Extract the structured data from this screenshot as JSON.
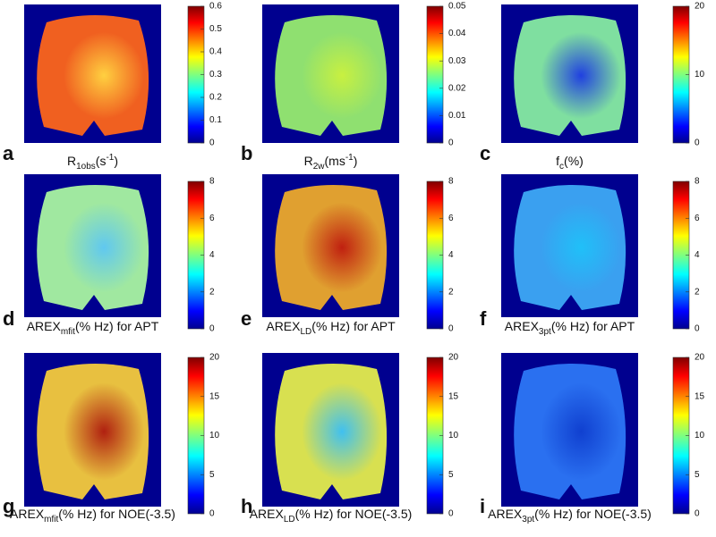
{
  "panels": [
    {
      "letter": "a",
      "label": [
        {
          "text": "R"
        },
        {
          "text": "1obs",
          "sub": true
        },
        {
          "text": "(s"
        },
        {
          "text": "-1",
          "sup": true
        },
        {
          "text": ")"
        }
      ],
      "clim": [
        0,
        0.6
      ],
      "ticks": [
        0,
        0.1,
        0.2,
        0.3,
        0.4,
        0.5,
        0.6
      ]
    },
    {
      "letter": "b",
      "label": [
        {
          "text": "R"
        },
        {
          "text": "2w",
          "sub": true
        },
        {
          "text": "(ms"
        },
        {
          "text": "-1",
          "sup": true
        },
        {
          "text": ")"
        }
      ],
      "clim": [
        0,
        0.05
      ],
      "ticks": [
        0,
        0.01,
        0.02,
        0.03,
        0.04,
        0.05
      ]
    },
    {
      "letter": "c",
      "label": [
        {
          "text": "f"
        },
        {
          "text": "c",
          "sub": true
        },
        {
          "text": "(%)"
        }
      ],
      "clim": [
        0,
        20
      ],
      "ticks": [
        0,
        10,
        20
      ]
    },
    {
      "letter": "d",
      "label": [
        {
          "text": "AREX"
        },
        {
          "text": "mfit",
          "sub": true
        },
        {
          "text": "(% Hz) for APT"
        }
      ],
      "clim": [
        0,
        8
      ],
      "ticks": [
        0,
        2,
        4,
        6,
        8
      ]
    },
    {
      "letter": "e",
      "label": [
        {
          "text": "AREX"
        },
        {
          "text": "LD",
          "sub": true
        },
        {
          "text": "(% Hz) for APT"
        }
      ],
      "clim": [
        0,
        8
      ],
      "ticks": [
        0,
        2,
        4,
        6,
        8
      ]
    },
    {
      "letter": "f",
      "label": [
        {
          "text": "AREX"
        },
        {
          "text": "3pt",
          "sub": true
        },
        {
          "text": "(% Hz) for APT"
        }
      ],
      "clim": [
        0,
        8
      ],
      "ticks": [
        0,
        2,
        4,
        6,
        8
      ]
    },
    {
      "letter": "g",
      "label": [
        {
          "text": "AREX"
        },
        {
          "text": "mfit",
          "sub": true
        },
        {
          "text": "(% Hz) for NOE(-3.5)"
        }
      ],
      "clim": [
        0,
        20
      ],
      "ticks": [
        0,
        5,
        10,
        15,
        20
      ]
    },
    {
      "letter": "h",
      "label": [
        {
          "text": "AREX"
        },
        {
          "text": "LD",
          "sub": true
        },
        {
          "text": "(% Hz) for NOE(-3.5)"
        }
      ],
      "clim": [
        0,
        20
      ],
      "ticks": [
        0,
        5,
        10,
        15,
        20
      ]
    },
    {
      "letter": "i",
      "label": [
        {
          "text": "AREX"
        },
        {
          "text": "3pt",
          "sub": true
        },
        {
          "text": "(% Hz) for NOE(-3.5)"
        }
      ],
      "clim": [
        0,
        20
      ],
      "ticks": [
        0,
        5,
        10,
        15,
        20
      ]
    }
  ]
}
